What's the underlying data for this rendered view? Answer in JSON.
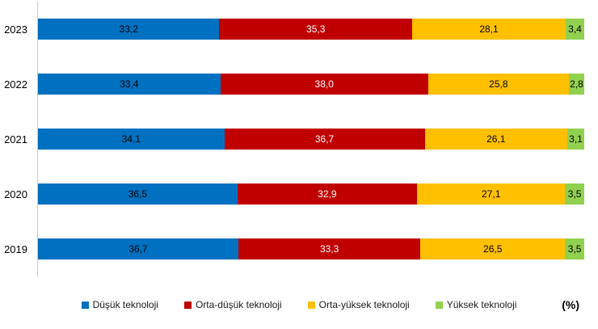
{
  "chart_data": {
    "type": "bar",
    "orientation": "horizontal_stacked",
    "title": "",
    "xlabel": "",
    "ylabel": "",
    "unit_label": "(%)",
    "xlim": [
      0,
      100
    ],
    "grid": false,
    "legend_position": "bottom",
    "value_decimal_separator": ",",
    "axis_line_color": "#c9c9c9",
    "categories": [
      "2023",
      "2022",
      "2021",
      "2020",
      "2019"
    ],
    "series": [
      {
        "name": "Düşük teknoloji",
        "color": "#0070C0",
        "label_color": "#000000",
        "values": [
          33.2,
          33.4,
          34.1,
          36.5,
          36.7
        ],
        "labels": [
          "33,2",
          "33,4",
          "34,1",
          "36,5",
          "36,7"
        ]
      },
      {
        "name": "Orta-düşük teknoloji",
        "color": "#C00000",
        "label_color": "#FFFFFF",
        "values": [
          35.3,
          38.0,
          36.7,
          32.9,
          33.3
        ],
        "labels": [
          "35,3",
          "38,0",
          "36,7",
          "32,9",
          "33,3"
        ]
      },
      {
        "name": "Orta-yüksek teknoloji",
        "color": "#FFC000",
        "label_color": "#000000",
        "values": [
          28.1,
          25.8,
          26.1,
          27.1,
          26.5
        ],
        "labels": [
          "28,1",
          "25,8",
          "26,1",
          "27,1",
          "26,5"
        ]
      },
      {
        "name": "Yüksek teknoloji",
        "color": "#92D050",
        "label_color": "#000000",
        "values": [
          3.4,
          2.8,
          3.1,
          3.5,
          3.5
        ],
        "labels": [
          "3,4",
          "2,8",
          "3,1",
          "3,5",
          "3,5"
        ]
      }
    ]
  }
}
